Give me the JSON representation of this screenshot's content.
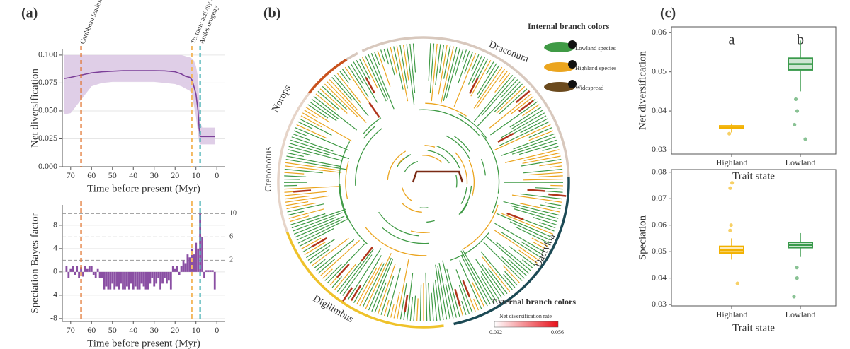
{
  "chart_data": [
    {
      "panel": "(a)",
      "type": "line",
      "xlabel": "Time before present (Myr)",
      "ylabel": "Net diversification",
      "x": [
        73,
        70,
        65,
        60,
        55,
        50,
        45,
        40,
        35,
        30,
        25,
        20,
        17,
        15,
        13,
        12,
        11,
        10,
        9,
        8.5,
        8,
        7,
        5,
        3,
        1
      ],
      "values": [
        0.079,
        0.08,
        0.082,
        0.084,
        0.085,
        0.0855,
        0.086,
        0.086,
        0.086,
        0.086,
        0.0858,
        0.085,
        0.083,
        0.081,
        0.08,
        0.078,
        0.072,
        0.065,
        0.05,
        0.035,
        0.027,
        0.027,
        0.027,
        0.027,
        0.027
      ],
      "band_upper": [
        0.1,
        0.1,
        0.1,
        0.1,
        0.1,
        0.1,
        0.1,
        0.1,
        0.1,
        0.1,
        0.1,
        0.1,
        0.1,
        0.099,
        0.098,
        0.097,
        0.095,
        0.09,
        0.08,
        0.06,
        0.04,
        0.035,
        0.035,
        0.035,
        0.035
      ],
      "band_lower": [
        0.047,
        0.048,
        0.06,
        0.072,
        0.075,
        0.076,
        0.076,
        0.076,
        0.076,
        0.076,
        0.075,
        0.074,
        0.072,
        0.07,
        0.068,
        0.065,
        0.055,
        0.045,
        0.03,
        0.022,
        0.02,
        0.02,
        0.02,
        0.02,
        0.02
      ],
      "color": "#7b3f98",
      "band_color": "#d9c6e3",
      "xlim": [
        74,
        -4
      ],
      "xticks": [
        70,
        60,
        50,
        40,
        30,
        20,
        10,
        0
      ],
      "ylim": [
        0,
        0.105
      ],
      "yticks": [
        {
          "value": 0,
          "label": "0.000"
        },
        0.025,
        {
          "value": 0.05,
          "label": "0.050"
        },
        0.075,
        {
          "value": 0.1,
          "label": "0.100"
        }
      ],
      "events": [
        {
          "x": 65,
          "label": "Caribbean landmasses separated",
          "color": "#e0712a"
        },
        {
          "x": 12,
          "label": "Tectonic activity in Central America",
          "color": "#f4b860"
        },
        {
          "x": 8,
          "label": "Andes orogeny",
          "color": "#4bb2b6"
        }
      ]
    },
    {
      "type": "bar",
      "xlabel": "Time before present (Myr)",
      "ylabel": "Speciation Bayes factor",
      "x": [
        72,
        71,
        70,
        69,
        68,
        67,
        66,
        65,
        64,
        63,
        62,
        61,
        60,
        59,
        58,
        57,
        56,
        55,
        54,
        53,
        52,
        51,
        50,
        49,
        48,
        47,
        46,
        45,
        44,
        43,
        42,
        41,
        40,
        39,
        38,
        37,
        36,
        35,
        34,
        33,
        32,
        31,
        30,
        29,
        28,
        27,
        26,
        25,
        24,
        23,
        22,
        21,
        20,
        19,
        18,
        17,
        16,
        15,
        14,
        13,
        12,
        11,
        10,
        9,
        8,
        7,
        6,
        5,
        4,
        3,
        2,
        1
      ],
      "values": [
        1,
        -1,
        0.5,
        1,
        -0.5,
        1,
        -1,
        0.8,
        -0.8,
        1,
        0.5,
        1,
        1,
        -0.5,
        -1,
        0.5,
        -1,
        -1,
        -3,
        -2.5,
        -3,
        -3,
        -2,
        -3,
        -2.5,
        -3,
        -2,
        -3,
        -3,
        -2.5,
        -3,
        -2,
        -3,
        -2.5,
        -3,
        -3,
        -2,
        -2.5,
        -3,
        -3,
        -2,
        -1,
        -2.5,
        -2,
        -1,
        -3,
        -2,
        -1,
        -2,
        -1.5,
        -3,
        1,
        0.5,
        1,
        -0.5,
        1,
        2,
        1.5,
        3,
        2.5,
        4,
        3,
        5,
        4,
        10,
        6,
        -1,
        0.3,
        0.3,
        0.3,
        0.3,
        -3
      ],
      "color": "#8a4fa3",
      "xlim": [
        74,
        -4
      ],
      "xticks": [
        70,
        60,
        50,
        40,
        30,
        20,
        10,
        0
      ],
      "ylim": [
        -8.5,
        11.5
      ],
      "yticks": [
        -8,
        -4,
        0,
        4,
        8
      ],
      "reflines": [
        10,
        6,
        2
      ]
    },
    {
      "panel": "(b)",
      "type": "tree",
      "clades": [
        "Draconura",
        "Norops",
        "Ctenonotus",
        "Digilimbus",
        "Dactyloa"
      ],
      "internal_title": "Internal branch colors",
      "states": [
        "Lowland species",
        "Highland species",
        "Widespread"
      ],
      "external_title": "External branch colors",
      "rate_title": "Net diversification rate",
      "rate_min": "0.032",
      "rate_max": "0.056"
    },
    {
      "panel": "(c)",
      "type": "box",
      "xlabel": "Trait state",
      "ylabel": "Net diversification",
      "categories": [
        "Highland",
        "Lowland"
      ],
      "letters": [
        "a",
        "b"
      ],
      "colors": [
        "#f2b100",
        "#3a9a4c"
      ],
      "boxes": [
        {
          "min": 0.0345,
          "q1": 0.0355,
          "median": 0.0358,
          "q3": 0.0362,
          "max": 0.0368,
          "outliers": [
            0.0342
          ]
        },
        {
          "min": 0.045,
          "q1": 0.0505,
          "median": 0.052,
          "q3": 0.0535,
          "max": 0.058,
          "outliers": [
            0.0328,
            0.0365,
            0.04,
            0.043
          ]
        }
      ],
      "ylim": [
        0.029,
        0.0615
      ],
      "yticks": [
        0.03,
        0.04,
        0.05,
        0.06
      ]
    },
    {
      "type": "box",
      "xlabel": "Trait state",
      "ylabel": "Speciation",
      "categories": [
        "Highland",
        "Lowland"
      ],
      "colors": [
        "#f2b100",
        "#3a9a4c"
      ],
      "boxes": [
        {
          "min": 0.047,
          "q1": 0.0495,
          "median": 0.0505,
          "q3": 0.052,
          "max": 0.055,
          "outliers": [
            0.076,
            0.074,
            0.038,
            0.06,
            0.058
          ]
        },
        {
          "min": 0.048,
          "q1": 0.0515,
          "median": 0.0525,
          "q3": 0.0535,
          "max": 0.057,
          "outliers": [
            0.033,
            0.04,
            0.044
          ]
        }
      ],
      "ylim": [
        0.0295,
        0.081
      ],
      "yticks": [
        0.03,
        0.04,
        0.05,
        0.06,
        0.07,
        0.08
      ]
    }
  ]
}
